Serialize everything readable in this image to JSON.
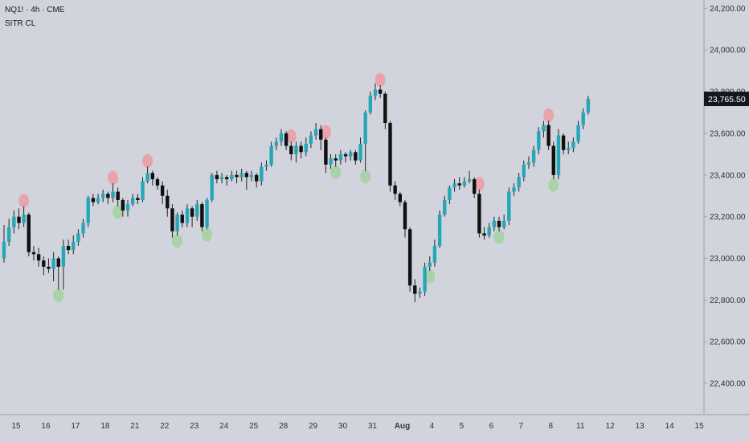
{
  "header": {
    "symbol": "NQ1! · 4h · CME",
    "indicator": "SITR CL"
  },
  "colors": {
    "up": "#26a7b8",
    "down": "#101010",
    "wick": "#222222",
    "marker_high": "#e8a3ab",
    "marker_low": "#a9d2a9",
    "price_tag_bg": "#131722",
    "price_tag_text": "#ffffff",
    "grid_text": "#333333"
  },
  "chart_data": {
    "type": "candlestick",
    "title": "",
    "y_axis": {
      "ticks": [
        22400,
        22600,
        22800,
        23000,
        23200,
        23400,
        23600,
        23800,
        24000,
        24200
      ],
      "tick_labels": [
        "22,400.00",
        "22,600.00",
        "22,800.00",
        "23,000.00",
        "23,200.00",
        "23,400.00",
        "23,600.00",
        "23,800.00",
        "24,000.00",
        "24,200.00"
      ],
      "range": [
        22250,
        24240
      ]
    },
    "x_axis": {
      "tick_labels": [
        "15",
        "16",
        "17",
        "18",
        "21",
        "22",
        "23",
        "24",
        "25",
        "28",
        "29",
        "30",
        "31",
        "Aug",
        "4",
        "5",
        "6",
        "7",
        "8",
        "11",
        "12",
        "13",
        "14",
        "15"
      ],
      "tick_index": [
        0,
        6,
        12,
        18,
        24,
        30,
        36,
        42,
        48,
        54,
        60,
        66,
        72,
        78,
        84,
        90,
        96,
        102,
        108,
        114,
        120,
        126,
        132,
        138
      ]
    },
    "last_price": "23,765.50",
    "last_value": 23765.5,
    "candles": [
      [
        23000,
        23080,
        23160,
        22980
      ],
      [
        23080,
        23150,
        23190,
        23060
      ],
      [
        23150,
        23200,
        23230,
        23120
      ],
      [
        23200,
        23170,
        23240,
        23140
      ],
      [
        23170,
        23210,
        23250,
        23150
      ],
      [
        23210,
        23030,
        23220,
        23010
      ],
      [
        23030,
        23020,
        23060,
        22990
      ],
      [
        23020,
        22990,
        23050,
        22960
      ],
      [
        22990,
        22960,
        23010,
        22920
      ],
      [
        22960,
        22950,
        23000,
        22930
      ],
      [
        22950,
        23000,
        23030,
        22890
      ],
      [
        23000,
        22960,
        23010,
        22850
      ],
      [
        22960,
        23060,
        23090,
        22850
      ],
      [
        23060,
        23040,
        23090,
        23020
      ],
      [
        23040,
        23080,
        23110,
        23020
      ],
      [
        23080,
        23120,
        23140,
        23060
      ],
      [
        23120,
        23170,
        23190,
        23100
      ],
      [
        23170,
        23290,
        23300,
        23150
      ],
      [
        23290,
        23270,
        23310,
        23250
      ],
      [
        23270,
        23290,
        23310,
        23260
      ],
      [
        23290,
        23310,
        23330,
        23270
      ],
      [
        23310,
        23290,
        23320,
        23260
      ],
      [
        23290,
        23320,
        23360,
        23270
      ],
      [
        23320,
        23280,
        23340,
        23250
      ],
      [
        23280,
        23230,
        23290,
        23200
      ],
      [
        23230,
        23260,
        23280,
        23200
      ],
      [
        23260,
        23290,
        23310,
        23250
      ],
      [
        23290,
        23280,
        23310,
        23260
      ],
      [
        23280,
        23370,
        23390,
        23270
      ],
      [
        23370,
        23410,
        23440,
        23360
      ],
      [
        23410,
        23380,
        23420,
        23350
      ],
      [
        23380,
        23350,
        23390,
        23330
      ],
      [
        23350,
        23300,
        23370,
        23260
      ],
      [
        23300,
        23240,
        23330,
        23200
      ],
      [
        23240,
        23130,
        23260,
        23100
      ],
      [
        23130,
        23210,
        23220,
        23110
      ],
      [
        23210,
        23170,
        23230,
        23150
      ],
      [
        23170,
        23240,
        23260,
        23150
      ],
      [
        23240,
        23200,
        23250,
        23150
      ],
      [
        23200,
        23260,
        23280,
        23180
      ],
      [
        23260,
        23150,
        23270,
        23130
      ],
      [
        23150,
        23280,
        23290,
        23140
      ],
      [
        23280,
        23400,
        23410,
        23270
      ],
      [
        23400,
        23380,
        23420,
        23360
      ],
      [
        23380,
        23390,
        23410,
        23360
      ],
      [
        23390,
        23380,
        23400,
        23350
      ],
      [
        23380,
        23400,
        23420,
        23370
      ],
      [
        23400,
        23390,
        23420,
        23360
      ],
      [
        23390,
        23410,
        23430,
        23370
      ],
      [
        23410,
        23390,
        23420,
        23330
      ],
      [
        23390,
        23400,
        23420,
        23370
      ],
      [
        23400,
        23370,
        23410,
        23340
      ],
      [
        23370,
        23440,
        23460,
        23350
      ],
      [
        23440,
        23450,
        23470,
        23420
      ],
      [
        23450,
        23540,
        23560,
        23440
      ],
      [
        23540,
        23560,
        23580,
        23520
      ],
      [
        23560,
        23600,
        23620,
        23540
      ],
      [
        23600,
        23540,
        23610,
        23520
      ],
      [
        23540,
        23500,
        23560,
        23470
      ],
      [
        23500,
        23540,
        23560,
        23460
      ],
      [
        23540,
        23510,
        23560,
        23480
      ],
      [
        23510,
        23550,
        23580,
        23490
      ],
      [
        23550,
        23590,
        23610,
        23530
      ],
      [
        23590,
        23620,
        23650,
        23570
      ],
      [
        23620,
        23570,
        23640,
        23520
      ],
      [
        23570,
        23450,
        23580,
        23410
      ],
      [
        23450,
        23480,
        23500,
        23430
      ],
      [
        23480,
        23470,
        23500,
        23440
      ],
      [
        23470,
        23500,
        23520,
        23450
      ],
      [
        23500,
        23490,
        23510,
        23460
      ],
      [
        23490,
        23510,
        23520,
        23470
      ],
      [
        23510,
        23470,
        23520,
        23450
      ],
      [
        23470,
        23550,
        23580,
        23460
      ],
      [
        23550,
        23700,
        23710,
        23420
      ],
      [
        23700,
        23780,
        23800,
        23690
      ],
      [
        23780,
        23810,
        23840,
        23760
      ],
      [
        23810,
        23790,
        23830,
        23770
      ],
      [
        23790,
        23650,
        23800,
        23620
      ],
      [
        23650,
        23350,
        23660,
        23320
      ],
      [
        23350,
        23310,
        23370,
        23280
      ],
      [
        23310,
        23270,
        23320,
        23250
      ],
      [
        23270,
        23140,
        23280,
        23100
      ],
      [
        23140,
        22870,
        23150,
        22840
      ],
      [
        22870,
        22830,
        22900,
        22790
      ],
      [
        22830,
        22840,
        22860,
        22810
      ],
      [
        22840,
        22960,
        22980,
        22820
      ],
      [
        22960,
        22980,
        23010,
        22940
      ],
      [
        22980,
        23060,
        23090,
        22960
      ],
      [
        23060,
        23210,
        23230,
        23050
      ],
      [
        23210,
        23280,
        23300,
        23200
      ],
      [
        23280,
        23340,
        23350,
        23260
      ],
      [
        23340,
        23360,
        23380,
        23320
      ],
      [
        23360,
        23350,
        23390,
        23330
      ],
      [
        23350,
        23370,
        23390,
        23340
      ],
      [
        23370,
        23380,
        23420,
        23360
      ],
      [
        23380,
        23310,
        23390,
        23290
      ],
      [
        23310,
        23120,
        23330,
        23100
      ],
      [
        23120,
        23110,
        23150,
        23090
      ],
      [
        23110,
        23150,
        23170,
        23100
      ],
      [
        23150,
        23180,
        23200,
        23130
      ],
      [
        23180,
        23150,
        23200,
        23130
      ],
      [
        23150,
        23180,
        23210,
        23140
      ],
      [
        23180,
        23320,
        23340,
        23160
      ],
      [
        23320,
        23340,
        23360,
        23300
      ],
      [
        23340,
        23390,
        23410,
        23320
      ],
      [
        23390,
        23450,
        23470,
        23370
      ],
      [
        23450,
        23460,
        23490,
        23430
      ],
      [
        23460,
        23520,
        23540,
        23440
      ],
      [
        23520,
        23610,
        23630,
        23500
      ],
      [
        23610,
        23640,
        23660,
        23580
      ],
      [
        23640,
        23540,
        23660,
        23520
      ],
      [
        23540,
        23400,
        23560,
        23380
      ],
      [
        23400,
        23590,
        23620,
        23380
      ],
      [
        23590,
        23520,
        23600,
        23500
      ],
      [
        23520,
        23530,
        23560,
        23500
      ],
      [
        23530,
        23560,
        23580,
        23510
      ],
      [
        23560,
        23640,
        23660,
        23550
      ],
      [
        23640,
        23700,
        23720,
        23620
      ],
      [
        23700,
        23765.5,
        23780,
        23690
      ]
    ],
    "markers_high": [
      4,
      22,
      29,
      58,
      65,
      76,
      96,
      110
    ],
    "markers_low": [
      11,
      23,
      35,
      41,
      67,
      73,
      86,
      100,
      111
    ]
  }
}
